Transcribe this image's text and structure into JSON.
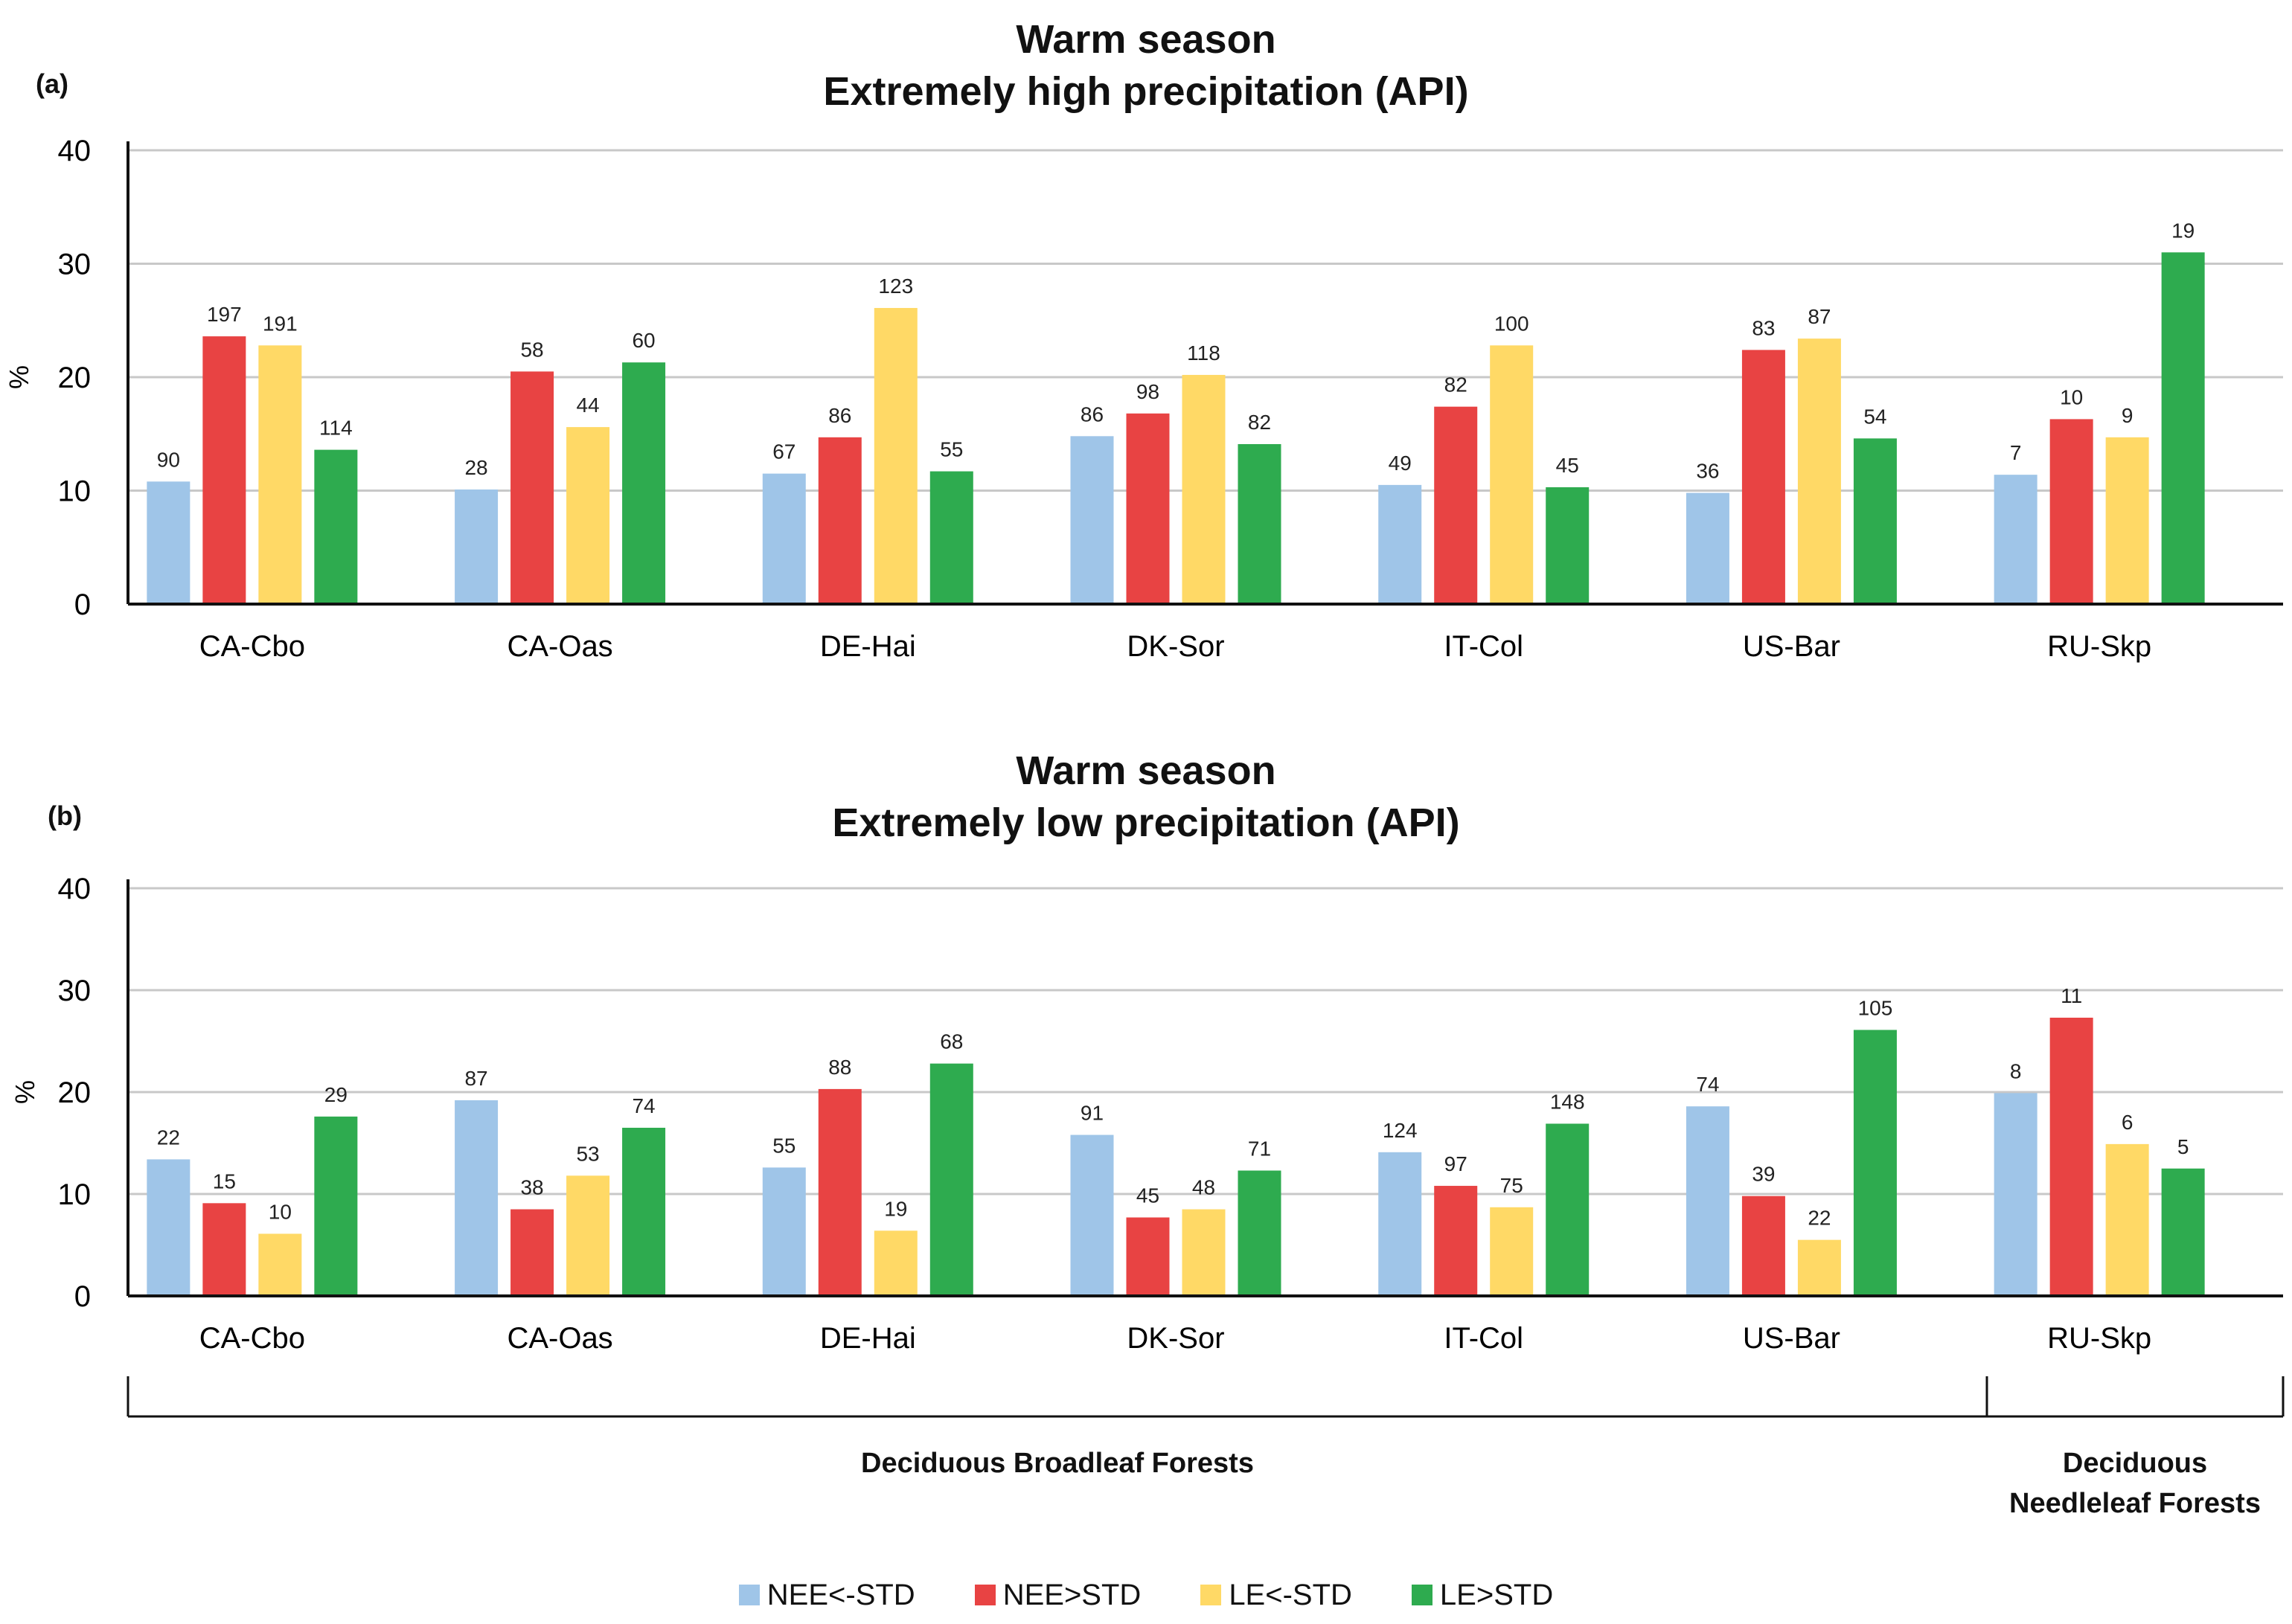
{
  "panels": {
    "a": {
      "letter": "(a)",
      "title_line1": "Warm season",
      "title_line2": "Extremely high precipitation (API)"
    },
    "b": {
      "letter": "(b)",
      "title_line1": "Warm season",
      "title_line2": "Extremely low precipitation  (API)"
    }
  },
  "groups": {
    "broadleaf": "Deciduous Broadleaf Forests",
    "needleleaf_line1": "Deciduous",
    "needleleaf_line2": "Needleleaf Forests"
  },
  "legend": [
    {
      "label": "NEE<-STD",
      "color": "#9fc5e8"
    },
    {
      "label": "NEE>STD",
      "color": "#e84343"
    },
    {
      "label": "LE<-STD",
      "color": "#ffd966"
    },
    {
      "label": "LE>STD",
      "color": "#2eab4f"
    }
  ],
  "chart_data": [
    {
      "type": "bar",
      "panel": "a",
      "title": "Warm season Extremely high precipitation (API)",
      "xlabel": "",
      "ylabel": "%",
      "ylim": [
        0,
        40
      ],
      "yticks": [
        0,
        10,
        20,
        30,
        40
      ],
      "grid": true,
      "categories": [
        "CA-Cbo",
        "CA-Oas",
        "DE-Hai",
        "DK-Sor",
        "IT-Col",
        "US-Bar",
        "RU-Skp"
      ],
      "series": [
        {
          "name": "NEE<-STD",
          "color": "#9fc5e8",
          "values": [
            10.8,
            10.1,
            11.5,
            14.8,
            10.5,
            9.8,
            11.4
          ],
          "labels": [
            "90",
            "28",
            "67",
            "86",
            "49",
            "36",
            "7"
          ]
        },
        {
          "name": "NEE>STD",
          "color": "#e84343",
          "values": [
            23.6,
            20.5,
            14.7,
            16.8,
            17.4,
            22.4,
            16.3
          ],
          "labels": [
            "197",
            "58",
            "86",
            "98",
            "82",
            "83",
            "10"
          ]
        },
        {
          "name": "LE<-STD",
          "color": "#ffd966",
          "values": [
            22.8,
            15.6,
            26.1,
            20.2,
            22.8,
            23.4,
            14.7
          ],
          "labels": [
            "191",
            "44",
            "123",
            "118",
            "100",
            "87",
            "9"
          ]
        },
        {
          "name": "LE>STD",
          "color": "#2eab4f",
          "values": [
            13.6,
            21.3,
            11.7,
            14.1,
            10.3,
            14.6,
            31.0
          ],
          "labels": [
            "114",
            "60",
            "55",
            "82",
            "45",
            "54",
            "19"
          ]
        }
      ]
    },
    {
      "type": "bar",
      "panel": "b",
      "title": "Warm season Extremely low precipitation (API)",
      "xlabel": "",
      "ylabel": "%",
      "ylim": [
        0,
        40
      ],
      "yticks": [
        0,
        10,
        20,
        30,
        40
      ],
      "grid": true,
      "categories": [
        "CA-Cbo",
        "CA-Oas",
        "DE-Hai",
        "DK-Sor",
        "IT-Col",
        "US-Bar",
        "RU-Skp"
      ],
      "series": [
        {
          "name": "NEE<-STD",
          "color": "#9fc5e8",
          "values": [
            13.4,
            19.2,
            12.6,
            15.8,
            14.1,
            18.6,
            19.9
          ],
          "labels": [
            "22",
            "87",
            "55",
            "91",
            "124",
            "74",
            "8"
          ]
        },
        {
          "name": "NEE>STD",
          "color": "#e84343",
          "values": [
            9.1,
            8.5,
            20.3,
            7.7,
            10.8,
            9.8,
            27.3
          ],
          "labels": [
            "15",
            "38",
            "88",
            "45",
            "97",
            "39",
            "11"
          ]
        },
        {
          "name": "LE<-STD",
          "color": "#ffd966",
          "values": [
            6.1,
            11.8,
            6.4,
            8.5,
            8.7,
            5.5,
            14.9
          ],
          "labels": [
            "10",
            "53",
            "19",
            "48",
            "75",
            "22",
            "6"
          ]
        },
        {
          "name": "LE>STD",
          "color": "#2eab4f",
          "values": [
            17.6,
            16.5,
            22.8,
            12.3,
            16.9,
            26.1,
            12.5
          ],
          "labels": [
            "29",
            "74",
            "68",
            "71",
            "148",
            "105",
            "5"
          ]
        }
      ]
    }
  ]
}
